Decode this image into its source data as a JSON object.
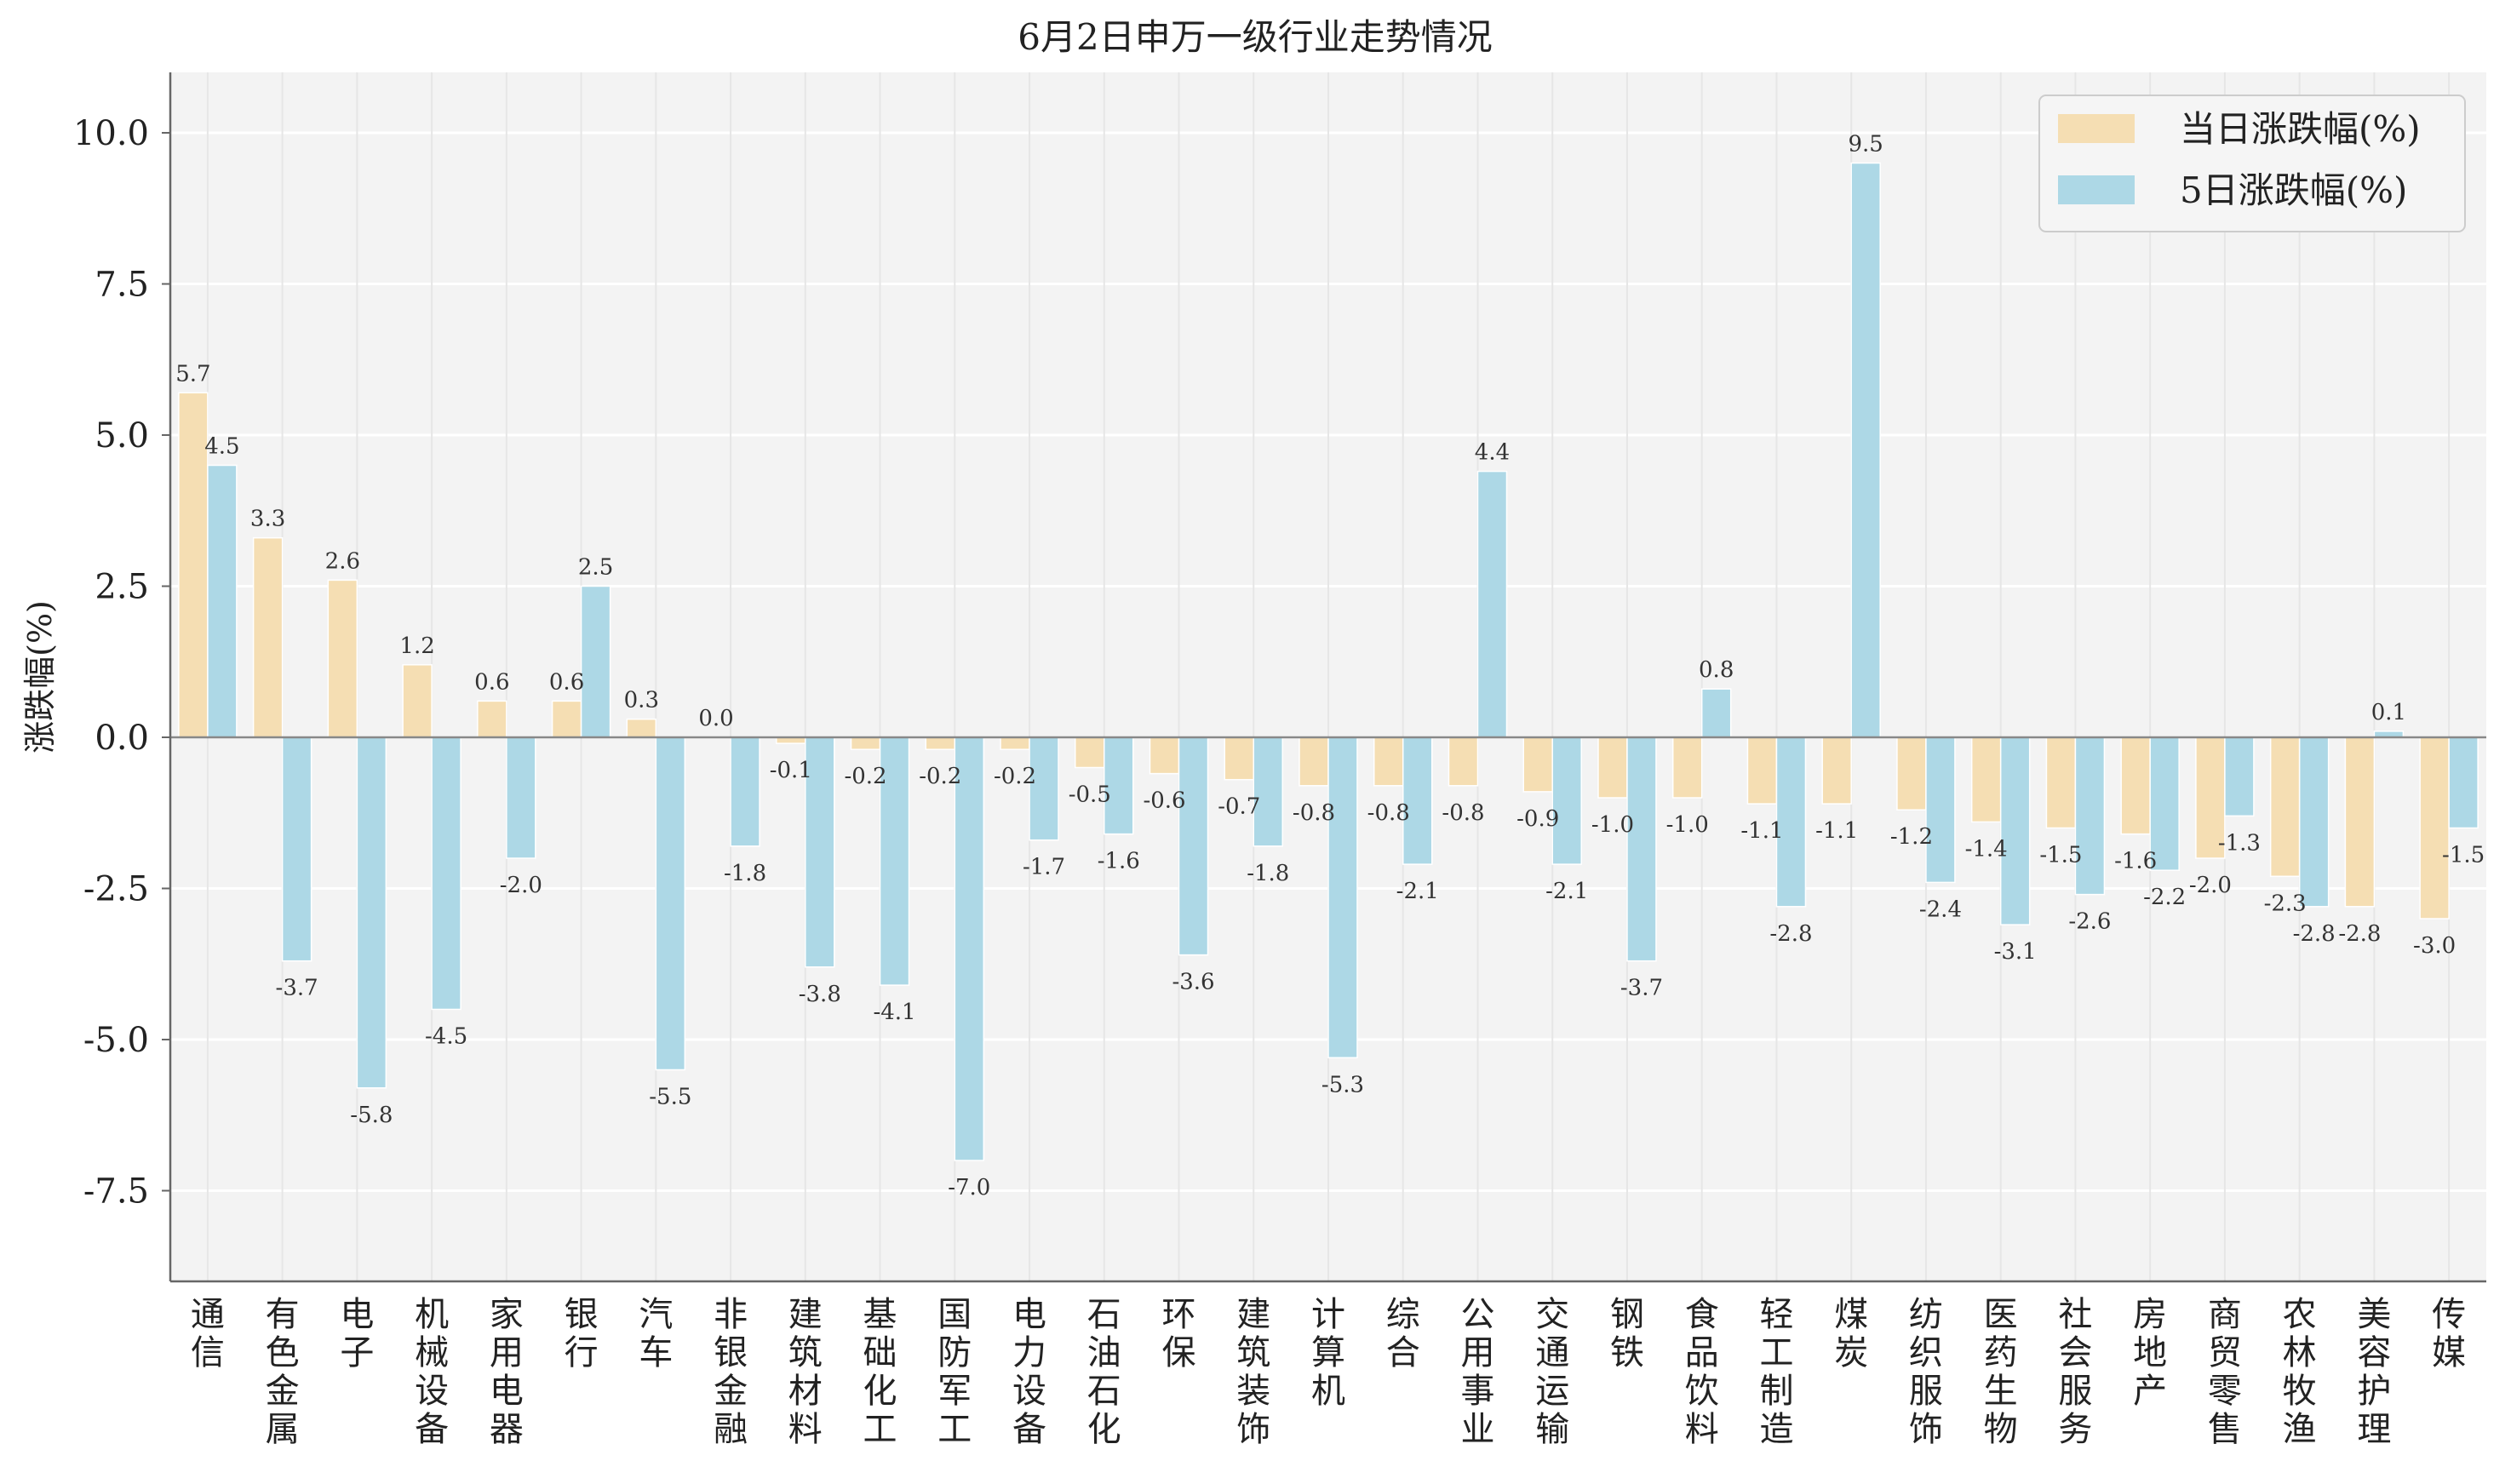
{
  "chart_data": {
    "type": "bar",
    "title": "6月2日申万一级行业走势情况",
    "xlabel": "",
    "ylabel": "涨跌幅(%)",
    "ylim": [
      -9.0,
      11.0
    ],
    "yticks": [
      -7.5,
      -5.0,
      -2.5,
      0.0,
      2.5,
      5.0,
      7.5,
      10.0
    ],
    "ytick_labels": [
      "-7.5",
      "-5.0",
      "-2.5",
      "0.0",
      "2.5",
      "5.0",
      "7.5",
      "10.0"
    ],
    "grid": true,
    "legend_position": "top-right",
    "categories": [
      "通信",
      "有色金属",
      "电子",
      "机械设备",
      "家用电器",
      "银行",
      "汽车",
      "非银金融",
      "建筑材料",
      "基础化工",
      "国防军工",
      "电力设备",
      "石油石化",
      "环保",
      "建筑装饰",
      "计算机",
      "综合",
      "公用事业",
      "交通运输",
      "钢铁",
      "食品饮料",
      "轻工制造",
      "煤炭",
      "纺织服饰",
      "医药生物",
      "社会服务",
      "房地产",
      "商贸零售",
      "农林牧渔",
      "美容护理",
      "传媒"
    ],
    "series": [
      {
        "name": "当日涨跌幅(%)",
        "color": "#F5DEB3",
        "values": [
          5.7,
          3.3,
          2.6,
          1.2,
          0.6,
          0.6,
          0.3,
          0.0,
          -0.1,
          -0.2,
          -0.2,
          -0.2,
          -0.5,
          -0.6,
          -0.7,
          -0.8,
          -0.8,
          -0.8,
          -0.9,
          -1.0,
          -1.0,
          -1.1,
          -1.1,
          -1.2,
          -1.4,
          -1.5,
          -1.6,
          -2.0,
          -2.3,
          -2.8,
          -3.0
        ],
        "labels": [
          "5.7",
          "3.3",
          "2.6",
          "1.2",
          "0.6",
          "0.6",
          "0.3",
          "0.0",
          "-0.1",
          "-0.2",
          "-0.2",
          "-0.2",
          "-0.5",
          "-0.6",
          "-0.7",
          "-0.8",
          "-0.8",
          "-0.8",
          "-0.9",
          "-1.0",
          "-1.0",
          "-1.1",
          "-1.1",
          "-1.2",
          "-1.4",
          "-1.5",
          "-1.6",
          "-2.0",
          "-2.3",
          "-2.8",
          "-3.0"
        ]
      },
      {
        "name": "5日涨跌幅(%)",
        "color": "#ADD8E6",
        "values": [
          4.5,
          -3.7,
          -5.8,
          -4.5,
          -2.0,
          2.5,
          -5.5,
          -1.8,
          -3.8,
          -4.1,
          -7.0,
          -1.7,
          -1.6,
          -3.6,
          -1.8,
          -5.3,
          -2.1,
          4.4,
          -2.1,
          -3.7,
          0.8,
          -2.8,
          9.5,
          -2.4,
          -3.1,
          -2.6,
          -2.2,
          -1.3,
          -2.8,
          0.1,
          -1.5
        ],
        "labels": [
          "4.5",
          "-3.7",
          "-5.8",
          "-4.5",
          "-2.0",
          "2.5",
          "-5.5",
          "-1.8",
          "-3.8",
          "-4.1",
          "-7.0",
          "-1.7",
          "-1.6",
          "-3.6",
          "-1.8",
          "-5.3",
          "-2.1",
          "4.4",
          "-2.1",
          "-3.7",
          "0.8",
          "-2.8",
          "9.5",
          "-2.4",
          "-3.1",
          "-2.6",
          "-2.2",
          "-1.3",
          "-2.8",
          "0.1",
          "-1.5"
        ]
      }
    ],
    "colors": {
      "plot_background": "#F3F3F3",
      "grid": "#FFFFFF",
      "zero_line": "#888888"
    }
  }
}
